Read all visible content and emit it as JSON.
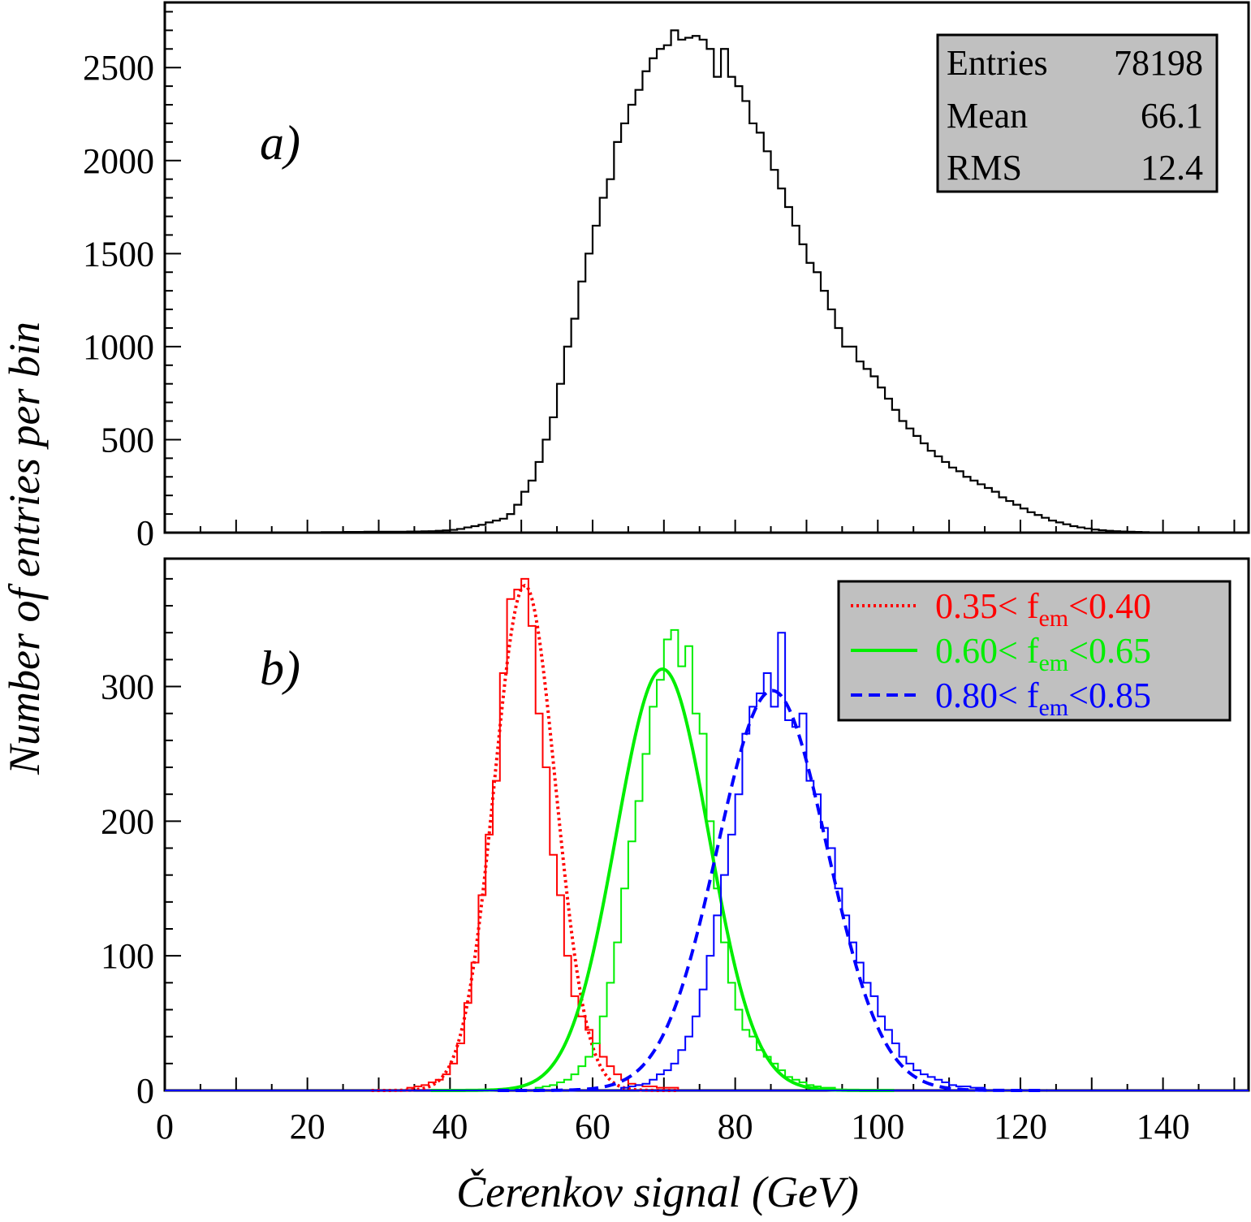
{
  "chart_data": [
    {
      "type": "line",
      "panel_label": "a)",
      "ylabel": "Number of entries per bin",
      "xlim": [
        0,
        152
      ],
      "ylim": [
        0,
        2850
      ],
      "yticks": [
        0,
        500,
        1000,
        1500,
        2000,
        2500
      ],
      "stats": {
        "rows": [
          {
            "label": "Entries",
            "value": "78198"
          },
          {
            "label": "Mean",
            "value": "66.1"
          },
          {
            "label": "RMS",
            "value": "12.4"
          }
        ]
      },
      "series": [
        {
          "type": "histogram",
          "color": "#000000",
          "bin_width": 1,
          "x_start": 20,
          "values": [
            2,
            2,
            3,
            3,
            3,
            4,
            4,
            4,
            5,
            5,
            5,
            5,
            5,
            5,
            6,
            6,
            7,
            8,
            10,
            12,
            15,
            20,
            28,
            35,
            42,
            55,
            65,
            75,
            100,
            150,
            220,
            280,
            380,
            500,
            620,
            800,
            1000,
            1150,
            1350,
            1500,
            1650,
            1800,
            1900,
            2100,
            2200,
            2300,
            2380,
            2480,
            2550,
            2600,
            2620,
            2700,
            2650,
            2660,
            2670,
            2650,
            2600,
            2450,
            2600,
            2450,
            2400,
            2320,
            2200,
            2150,
            2050,
            1950,
            1850,
            1750,
            1650,
            1550,
            1450,
            1400,
            1300,
            1200,
            1100,
            1000,
            1000,
            920,
            880,
            840,
            780,
            720,
            660,
            600,
            560,
            520,
            480,
            440,
            410,
            380,
            350,
            330,
            300,
            280,
            260,
            240,
            220,
            190,
            170,
            150,
            130,
            110,
            95,
            80,
            65,
            55,
            45,
            35,
            28,
            22,
            17,
            13,
            10,
            8,
            6,
            5,
            4,
            3
          ]
        }
      ]
    },
    {
      "type": "line",
      "panel_label": "b)",
      "xlabel": "Čerenkov signal (GeV)",
      "xlim": [
        0,
        152
      ],
      "ylim": [
        0,
        395
      ],
      "xticks": [
        0,
        20,
        40,
        60,
        80,
        100,
        120,
        140
      ],
      "yticks": [
        0,
        100,
        200,
        300
      ],
      "legend": {
        "position": "top-right"
      },
      "series": [
        {
          "name": "0.35< f_em <0.40",
          "legend_parts": [
            "0.35",
            "< f",
            "em",
            "<0.40"
          ],
          "color": "#ff0000",
          "fit_style": "dotted",
          "fit": {
            "mean": 50.5,
            "sigma": 4.3,
            "amplitude": 375
          },
          "hist_x_start": 34,
          "values": [
            2,
            3,
            4,
            6,
            8,
            12,
            20,
            35,
            65,
            95,
            145,
            190,
            230,
            310,
            365,
            372,
            380,
            345,
            280,
            240,
            175,
            145,
            100,
            70,
            55,
            45,
            35,
            25,
            18,
            12,
            8,
            5,
            4,
            3,
            3,
            2,
            2,
            2
          ]
        },
        {
          "name": "0.60< f_em <0.65",
          "legend_parts": [
            "0.60",
            "< f",
            "em",
            "<0.65"
          ],
          "color": "#00ee00",
          "fit_style": "solid",
          "fit": {
            "mean": 69.8,
            "sigma": 6.5,
            "amplitude": 313
          },
          "hist_x_start": 52,
          "values": [
            2,
            3,
            4,
            6,
            8,
            12,
            18,
            25,
            35,
            55,
            80,
            110,
            150,
            185,
            215,
            250,
            285,
            305,
            335,
            342,
            315,
            330,
            280,
            265,
            200,
            150,
            110,
            80,
            60,
            45,
            40,
            30,
            25,
            20,
            15,
            10,
            8,
            6,
            4,
            3,
            2,
            2
          ]
        },
        {
          "name": "0.80< f_em <0.85",
          "legend_parts": [
            "0.80",
            "< f",
            "em",
            "<0.85"
          ],
          "color": "#0000ff",
          "fit_style": "dashed",
          "fit": {
            "mean": 85.2,
            "sigma": 7.7,
            "amplitude": 297
          },
          "hist_x_start": 64,
          "values": [
            2,
            3,
            4,
            5,
            8,
            12,
            15,
            20,
            30,
            40,
            55,
            75,
            100,
            130,
            160,
            190,
            220,
            265,
            285,
            295,
            310,
            285,
            340,
            275,
            270,
            280,
            230,
            220,
            195,
            180,
            150,
            130,
            110,
            95,
            80,
            70,
            55,
            45,
            35,
            25,
            20,
            15,
            12,
            10,
            8,
            6,
            4,
            3,
            3,
            2,
            2
          ]
        }
      ]
    }
  ]
}
